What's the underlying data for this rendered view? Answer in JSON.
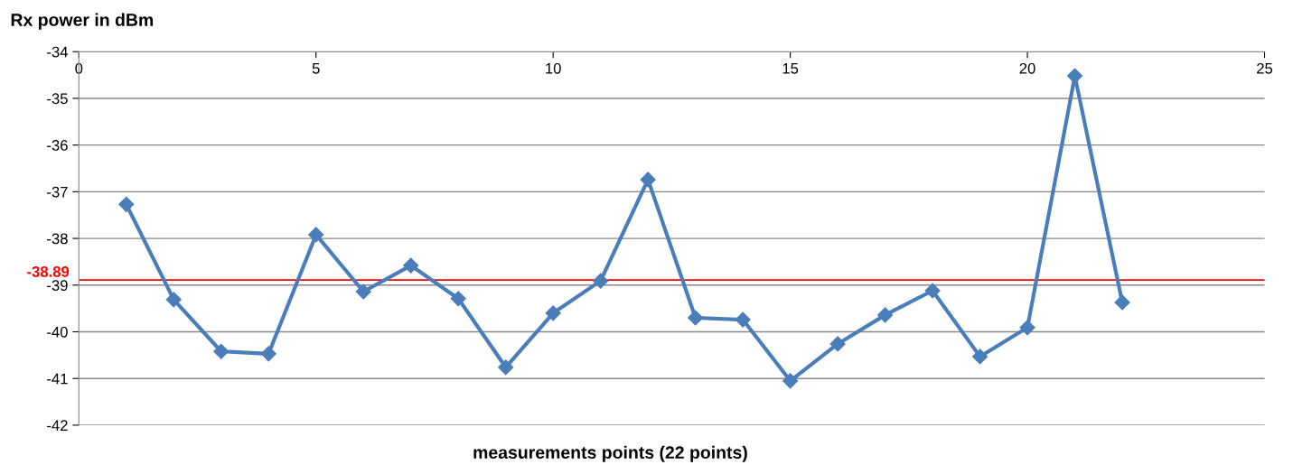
{
  "chart_data": {
    "type": "line",
    "ylabel": "Rx power in dBm",
    "xlabel": "measurements points (22 points)",
    "x": [
      1,
      2,
      3,
      4,
      5,
      6,
      7,
      8,
      9,
      10,
      11,
      12,
      13,
      14,
      15,
      16,
      17,
      18,
      19,
      20,
      21,
      22
    ],
    "series": [
      {
        "color": "#4a7ebb",
        "values": [
          -37.27,
          -39.31,
          -40.42,
          -40.47,
          -37.92,
          -39.14,
          -38.58,
          -39.29,
          -40.76,
          -39.6,
          -38.91,
          -36.74,
          -39.7,
          -39.74,
          -41.05,
          -40.26,
          -39.64,
          -39.12,
          -40.53,
          -39.91,
          -34.52,
          -39.37
        ]
      }
    ],
    "xlim": [
      0,
      25
    ],
    "xticks": [
      0,
      5,
      10,
      15,
      20,
      25
    ],
    "ylim": [
      -42,
      -34
    ],
    "yticks": [
      -42,
      -41,
      -40,
      -39,
      -38,
      -37,
      -36,
      -35,
      -34
    ],
    "ref_lines": [
      {
        "axis": "y",
        "value": -38.89,
        "label": "-38.89",
        "color": "#ff0000"
      }
    ],
    "grid": "y",
    "marker": "diamond",
    "line_style": "solid",
    "legend": false
  }
}
